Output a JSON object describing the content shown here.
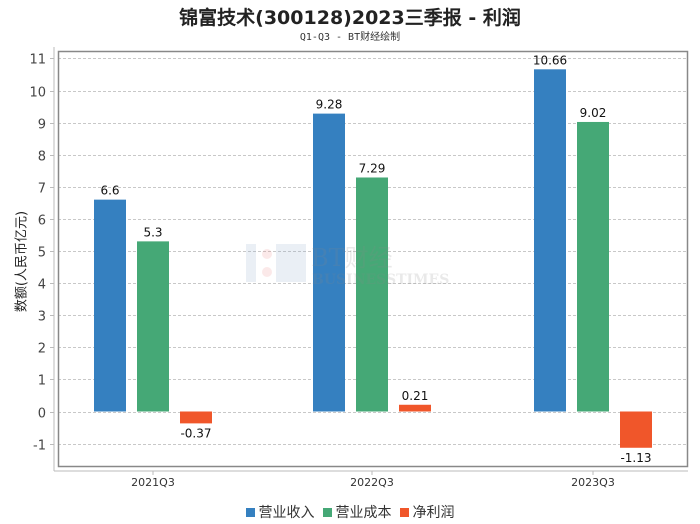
{
  "chart_data": {
    "type": "bar",
    "title": "锦富技术(300128)2023三季报 - 利润",
    "subtitle": "Q1-Q3 - BT财经绘制",
    "xlabel": "",
    "ylabel": "数额(人民币亿元)",
    "ylim": [
      -1.8,
      11.3
    ],
    "yticks": [
      -1,
      0,
      1,
      2,
      3,
      4,
      5,
      6,
      7,
      8,
      9,
      10,
      11
    ],
    "grid": true,
    "legend_position": "bottom",
    "categories": [
      "2021Q3",
      "2022Q3",
      "2023Q3"
    ],
    "series": [
      {
        "name": "营业收入",
        "color": "#3580c0",
        "values": [
          6.6,
          9.28,
          10.66
        ]
      },
      {
        "name": "营业成本",
        "color": "#45a876",
        "values": [
          5.3,
          7.29,
          9.02
        ]
      },
      {
        "name": "净利润",
        "color": "#f0562a",
        "values": [
          -0.37,
          0.21,
          -1.13
        ]
      }
    ],
    "value_labels": [
      [
        "6.6",
        "9.28",
        "10.66"
      ],
      [
        "5.3",
        "7.29",
        "9.02"
      ],
      [
        "-0.37",
        "0.21",
        "-1.13"
      ]
    ]
  },
  "watermark": {
    "text_cn": "BT财经",
    "text_en": "BUSINESSTIMES"
  }
}
